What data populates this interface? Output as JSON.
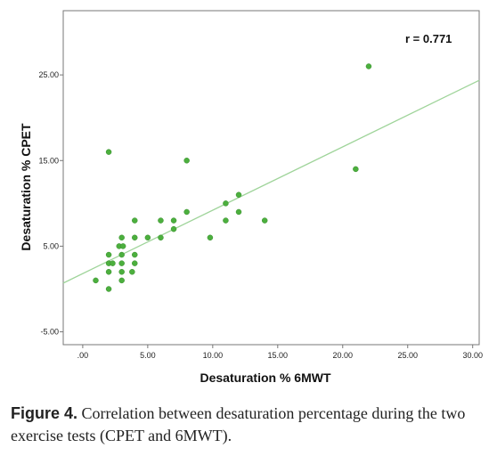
{
  "chart_data": {
    "type": "scatter",
    "xlabel": "Desaturation % 6MWT",
    "ylabel": "Desaturation % CPET",
    "xlim": [
      -1.5,
      30.5
    ],
    "ylim": [
      -6.5,
      32.5
    ],
    "x_ticks": [
      0,
      5,
      10,
      15,
      20,
      25,
      30
    ],
    "x_tick_labels": [
      ".00",
      "5.00",
      "10.00",
      "15.00",
      "20.00",
      "25.00",
      "30.00"
    ],
    "y_ticks": [
      -5,
      5,
      15,
      25
    ],
    "y_tick_labels": [
      "-5.00",
      "5.00",
      "15.00",
      "25.00"
    ],
    "annotation": "r = 0.771",
    "grid": false,
    "point_color": "#4caf3e",
    "line_color": "#9fd49a",
    "fit_line": {
      "slope": 0.74,
      "intercept": 1.8
    },
    "points": [
      {
        "x": 1,
        "y": 1
      },
      {
        "x": 2,
        "y": 16
      },
      {
        "x": 2,
        "y": 4
      },
      {
        "x": 2,
        "y": 3
      },
      {
        "x": 2,
        "y": 2
      },
      {
        "x": 2,
        "y": 0
      },
      {
        "x": 2.3,
        "y": 3
      },
      {
        "x": 3,
        "y": 6
      },
      {
        "x": 2.8,
        "y": 5
      },
      {
        "x": 3.1,
        "y": 5
      },
      {
        "x": 3,
        "y": 4
      },
      {
        "x": 3,
        "y": 3
      },
      {
        "x": 3,
        "y": 2
      },
      {
        "x": 3,
        "y": 1
      },
      {
        "x": 3.8,
        "y": 2
      },
      {
        "x": 4,
        "y": 8
      },
      {
        "x": 4,
        "y": 6
      },
      {
        "x": 4,
        "y": 4
      },
      {
        "x": 4,
        "y": 3
      },
      {
        "x": 5,
        "y": 6
      },
      {
        "x": 6,
        "y": 8
      },
      {
        "x": 6,
        "y": 6
      },
      {
        "x": 7,
        "y": 8
      },
      {
        "x": 7,
        "y": 7
      },
      {
        "x": 8,
        "y": 15
      },
      {
        "x": 8,
        "y": 9
      },
      {
        "x": 9.8,
        "y": 6
      },
      {
        "x": 11,
        "y": 10
      },
      {
        "x": 11,
        "y": 8
      },
      {
        "x": 12,
        "y": 11
      },
      {
        "x": 12,
        "y": 9
      },
      {
        "x": 14,
        "y": 8
      },
      {
        "x": 21,
        "y": 14
      },
      {
        "x": 22,
        "y": 26
      }
    ]
  },
  "caption": {
    "label": "Figure 4.",
    "text": " Correlation between desaturation percentage during the two exercise tests (CPET and 6MWT)."
  }
}
